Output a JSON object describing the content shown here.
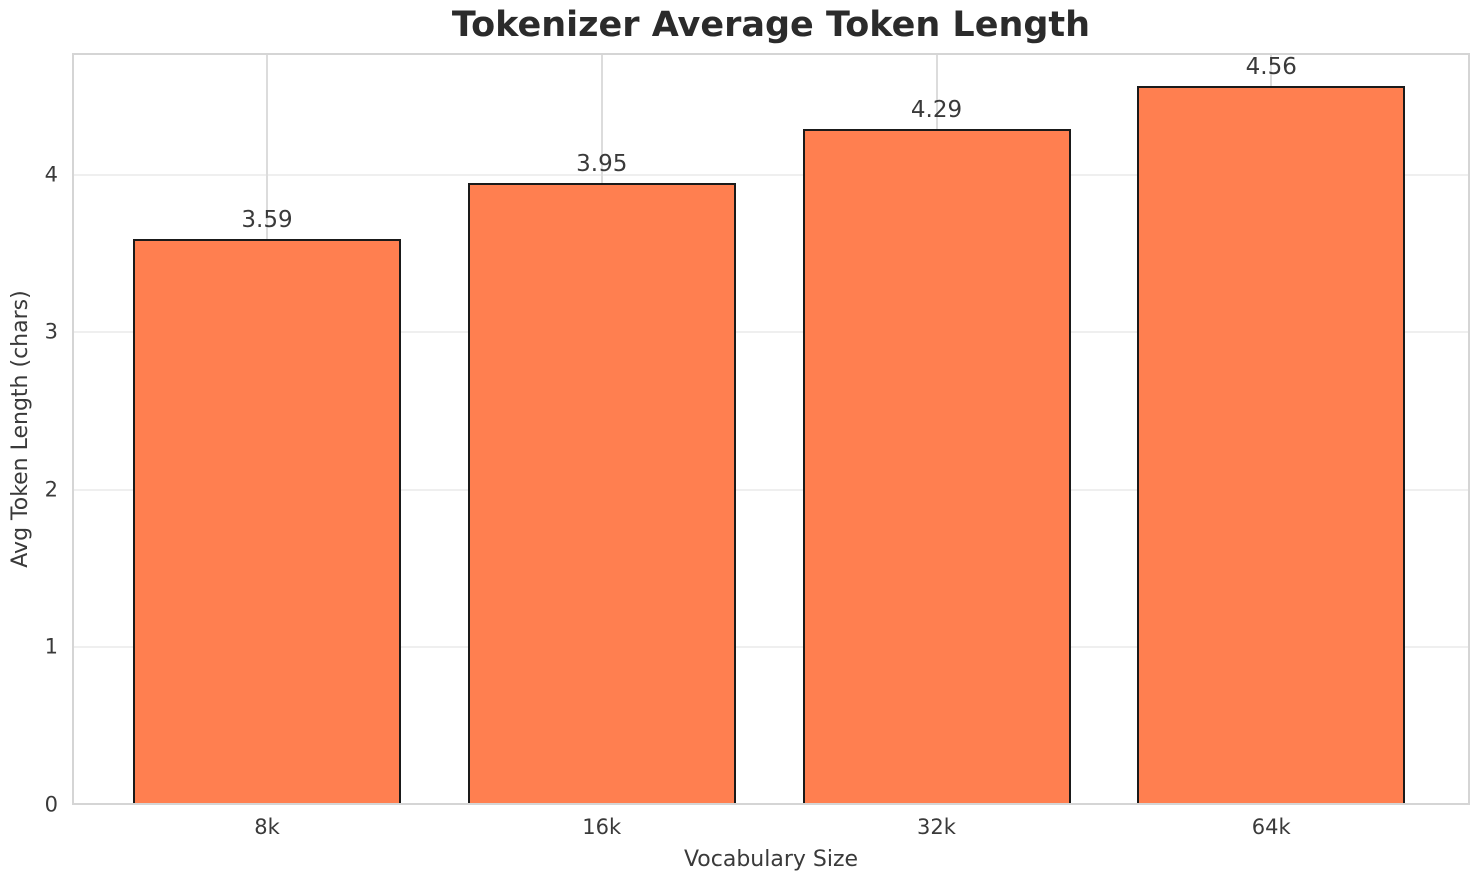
{
  "chart_data": {
    "type": "bar",
    "title": "Tokenizer Average Token Length",
    "xlabel": "Vocabulary Size",
    "ylabel": "Avg Token Length (chars)",
    "categories": [
      "8k",
      "16k",
      "32k",
      "64k"
    ],
    "values": [
      3.59,
      3.95,
      4.29,
      4.56
    ],
    "value_labels": [
      "3.59",
      "3.95",
      "4.29",
      "4.56"
    ],
    "yticks": [
      0,
      1,
      2,
      3,
      4
    ],
    "ylim": [
      0,
      4.772
    ],
    "grid": true,
    "legend": "none",
    "colors": {
      "bar_fill": "#FF7F50",
      "bar_edge": "#1A1A1A",
      "title_text": "#2B2B2B",
      "tick_text": "#3A3A3A",
      "h_gridline": "#EFEFEF",
      "v_gridline": "#DCDCDC",
      "spine": "#D5D5D5",
      "background": "#FFFFFF"
    }
  }
}
